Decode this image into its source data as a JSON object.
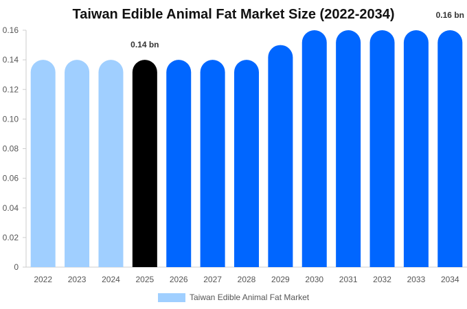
{
  "chart_data": {
    "type": "bar",
    "title": "Taiwan Edible Animal Fat Market Size (2022-2034)",
    "xlabel": "",
    "ylabel": "",
    "categories": [
      "2022",
      "2023",
      "2024",
      "2025",
      "2026",
      "2027",
      "2028",
      "2029",
      "2030",
      "2031",
      "2032",
      "2033",
      "2034"
    ],
    "series": [
      {
        "name": "Taiwan Edible Animal Fat Market",
        "values": [
          0.14,
          0.14,
          0.14,
          0.14,
          0.14,
          0.14,
          0.14,
          0.15,
          0.16,
          0.16,
          0.16,
          0.16,
          0.16
        ]
      }
    ],
    "bar_colors": [
      "#a0cfff",
      "#a0cfff",
      "#a0cfff",
      "#000000",
      "#0066ff",
      "#0066ff",
      "#0066ff",
      "#0066ff",
      "#0066ff",
      "#0066ff",
      "#0066ff",
      "#0066ff",
      "#0066ff"
    ],
    "data_labels": [
      {
        "index": 3,
        "text": "0.14 bn"
      },
      {
        "index": 12,
        "text": "0.16 bn"
      }
    ],
    "ylim": [
      0,
      0.16
    ],
    "yticks": [
      "0",
      "0.02",
      "0.04",
      "0.06",
      "0.08",
      "0.10",
      "0.12",
      "0.14",
      "0.16"
    ],
    "grid": false,
    "legend_position": "bottom",
    "legend_color": "#a0cfff"
  }
}
